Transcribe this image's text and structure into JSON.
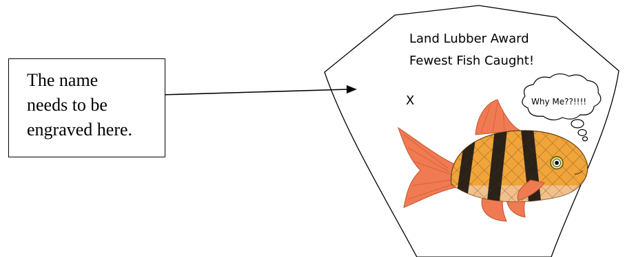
{
  "instruction": {
    "line1": "The name",
    "line2": "needs to be",
    "line3": "engraved here."
  },
  "plaque": {
    "title": "Land Lubber Award",
    "subtitle": "Fewest Fish Caught!",
    "name_marker": "X",
    "thought_bubble": "Why Me??!!!!"
  },
  "colors": {
    "outline": "#000000",
    "fish_body": "#f0a43a",
    "fish_band": "#2a2218",
    "fish_fin": "#f07a52",
    "fish_belly": "#f3c7a0"
  }
}
